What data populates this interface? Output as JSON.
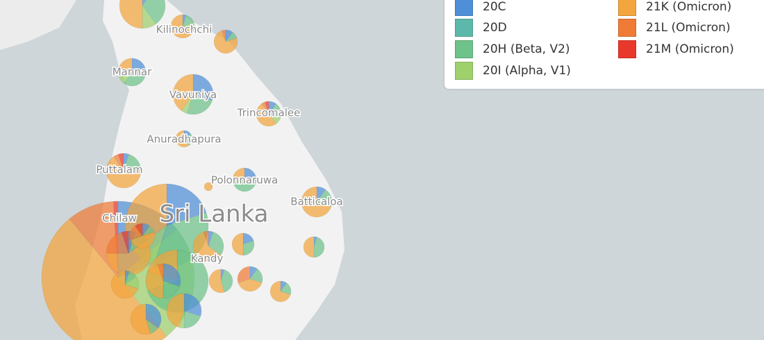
{
  "map": {
    "places": [
      "Kilinochchi",
      "Mannar",
      "Vavuniya",
      "Trincomalee",
      "Anuradhapura",
      "Puttalam",
      "Polonnaruwa",
      "Batticaloa",
      "Chilaw",
      "Kandy"
    ],
    "country": "Sri Lanka"
  },
  "legend": {
    "items": [
      {
        "label": "20C",
        "color": "#4f8fd8"
      },
      {
        "label": "20D",
        "color": "#5cb8aa"
      },
      {
        "label": "20H (Beta, V2)",
        "color": "#6ec28a"
      },
      {
        "label": "20I (Alpha, V1)",
        "color": "#9ed06c"
      },
      {
        "label": "21K (Omicron)",
        "color": "#f3a53e"
      },
      {
        "label": "21L (Omicron)",
        "color": "#f07b36"
      },
      {
        "label": "21M (Omicron)",
        "color": "#e8382b"
      }
    ]
  }
}
